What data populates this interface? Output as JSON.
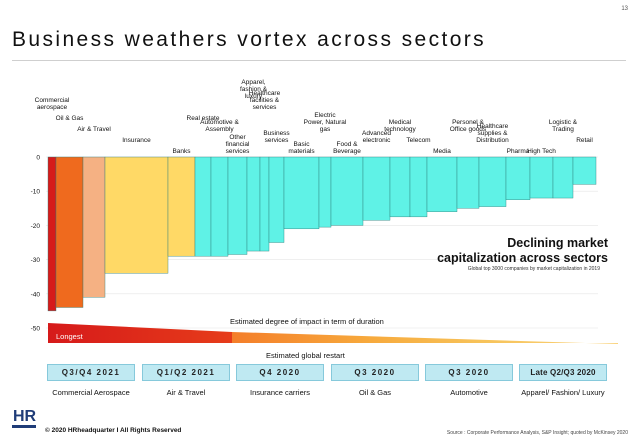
{
  "page": {
    "number": "13",
    "title": "Business weathers vortex across sectors"
  },
  "annotation": {
    "title_line1": "Declining market",
    "title_line2": "capitalization across sectors",
    "subtitle": "Global top 3000 companies by market capitalization in 2019"
  },
  "colors": {
    "red": "#d61a1a",
    "orange": "#ef6a1e",
    "peach": "#f5b183",
    "yellow": "#ffd966",
    "cyan": "#5ff2e6"
  },
  "chart_data": {
    "type": "bar",
    "ylim": [
      -50,
      0
    ],
    "yticks": [
      0,
      -10,
      -20,
      -30,
      -40,
      -50
    ],
    "categories": [
      "Commercial aerospace",
      "Oil & Gas",
      "Air & Travel",
      "Insurance",
      "Banks",
      "Real estate",
      "Automotive & Assembly",
      "Other financial services",
      "Apparel, fashion & luxury",
      "Healthcare facilities & services",
      "Business services",
      "Basic materials",
      "Electric Power, Natural gas",
      "Food & Beverage",
      "Advanced electronic",
      "Medical technology",
      "Telecom",
      "Media",
      "Personel & Office goods",
      "Healthcare supplies & Distribution",
      "Pharma",
      "High Tech",
      "Logistic & Trading",
      "Retail"
    ],
    "series": [
      {
        "values": [
          -45,
          -44,
          -41,
          -34,
          -29,
          -29,
          -29,
          -28.5,
          -27.5,
          -27.5,
          -25,
          -21,
          -20.5,
          -20,
          -18.5,
          -17.5,
          -17.5,
          -16,
          -15,
          -14.5,
          -12.5,
          -12,
          -12,
          -8
        ]
      }
    ],
    "colors": [
      "red",
      "orange",
      "peach",
      "yellow",
      "yellow",
      "cyan",
      "cyan",
      "cyan",
      "cyan",
      "cyan",
      "cyan",
      "cyan",
      "cyan",
      "cyan",
      "cyan",
      "cyan",
      "cyan",
      "cyan",
      "cyan",
      "cyan",
      "cyan",
      "cyan",
      "cyan",
      "cyan"
    ],
    "label_rows": [
      5,
      4,
      3,
      2,
      1,
      4,
      3,
      1,
      6,
      5,
      2,
      1,
      3,
      1,
      2,
      3,
      2,
      1,
      3,
      2,
      1,
      1,
      3,
      2
    ]
  },
  "timeline": {
    "impact_label": "Estimated degree of impact in term of duration",
    "longest_label": "Longest",
    "restart_label": "Estimated global restart",
    "quarters": [
      "Q3/Q4 2021",
      "Q1/Q2 2021",
      "Q4 2020",
      "Q3 2020",
      "Q3 2020",
      "Late Q2/Q3 2020"
    ],
    "sectors": [
      "Commercial Aerospace",
      "Air & Travel",
      "Insurance carriers",
      "Oil & Gas",
      "Automotive",
      "Apparel/ Fashion/ Luxury"
    ]
  },
  "footer": {
    "copyright": "© 2020 HRheadquarter I All Rights Reserved",
    "source": "Source : Corporate Performance Analysis, S&P Insight; quoted by McKinsey 2020"
  },
  "logo": {
    "icon": "hr-logo-icon",
    "text": "HR"
  }
}
